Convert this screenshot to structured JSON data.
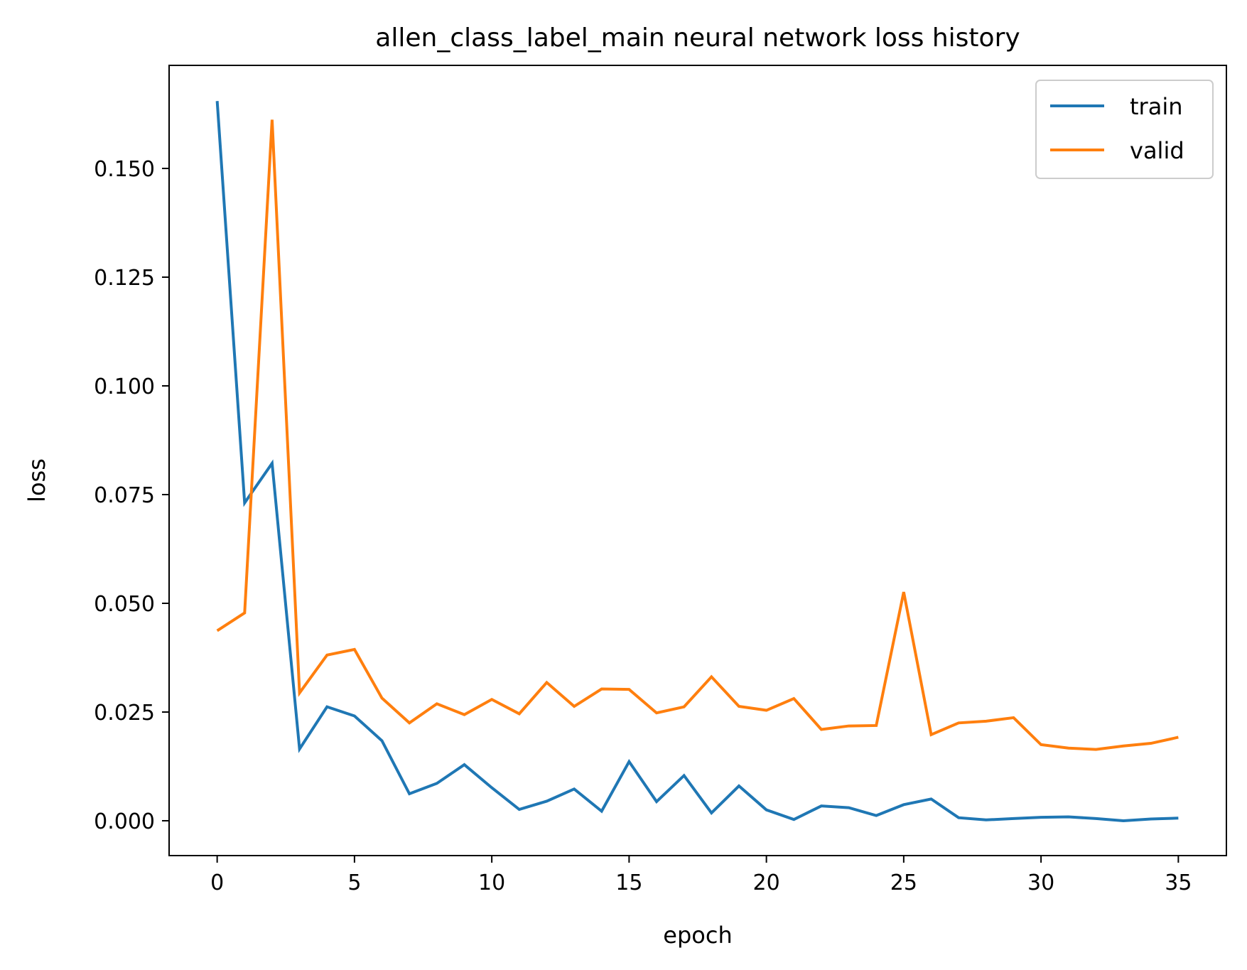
{
  "chart_data": {
    "type": "line",
    "title": "allen_class_label_main neural network loss history",
    "xlabel": "epoch",
    "ylabel": "loss",
    "xlim": [
      -1.75,
      36.75
    ],
    "ylim": [
      -0.00801,
      0.1737
    ],
    "x_ticks": [
      0,
      5,
      10,
      15,
      20,
      25,
      30,
      35
    ],
    "x_tick_labels": [
      "0",
      "5",
      "10",
      "15",
      "20",
      "25",
      "30",
      "35"
    ],
    "y_ticks": [
      0.0,
      0.025,
      0.05,
      0.075,
      0.1,
      0.125,
      0.15
    ],
    "y_tick_labels": [
      "0.000",
      "0.025",
      "0.050",
      "0.075",
      "0.100",
      "0.125",
      "0.150"
    ],
    "grid": false,
    "legend_position": "top-right",
    "x": [
      0,
      1,
      2,
      3,
      4,
      5,
      6,
      7,
      8,
      9,
      10,
      11,
      12,
      13,
      14,
      15,
      16,
      17,
      18,
      19,
      20,
      21,
      22,
      23,
      24,
      25,
      26,
      27,
      28,
      29,
      30,
      31,
      32,
      33,
      34,
      35
    ],
    "series": [
      {
        "name": "train",
        "color": "#1f77b4",
        "values": [
          0.1655,
          0.0731,
          0.0822,
          0.0165,
          0.0262,
          0.0241,
          0.0184,
          0.0062,
          0.0086,
          0.0129,
          0.0076,
          0.0026,
          0.0045,
          0.0073,
          0.0022,
          0.0136,
          0.0044,
          0.0104,
          0.0018,
          0.008,
          0.0025,
          0.0003,
          0.0034,
          0.003,
          0.0012,
          0.0037,
          0.005,
          0.0007,
          0.0002,
          0.0005,
          0.0008,
          0.0009,
          0.0005,
          0.0,
          0.0004,
          0.0006
        ]
      },
      {
        "name": "valid",
        "color": "#ff7f0e",
        "values": [
          0.0437,
          0.0478,
          0.1612,
          0.0294,
          0.0381,
          0.0394,
          0.0282,
          0.0225,
          0.0269,
          0.0244,
          0.0279,
          0.0246,
          0.0318,
          0.0263,
          0.0303,
          0.0302,
          0.0248,
          0.0262,
          0.0331,
          0.0263,
          0.0254,
          0.0281,
          0.021,
          0.0218,
          0.0219,
          0.0526,
          0.0198,
          0.0225,
          0.0229,
          0.0237,
          0.0175,
          0.0167,
          0.0164,
          0.0172,
          0.0178,
          0.0192
        ]
      }
    ]
  }
}
